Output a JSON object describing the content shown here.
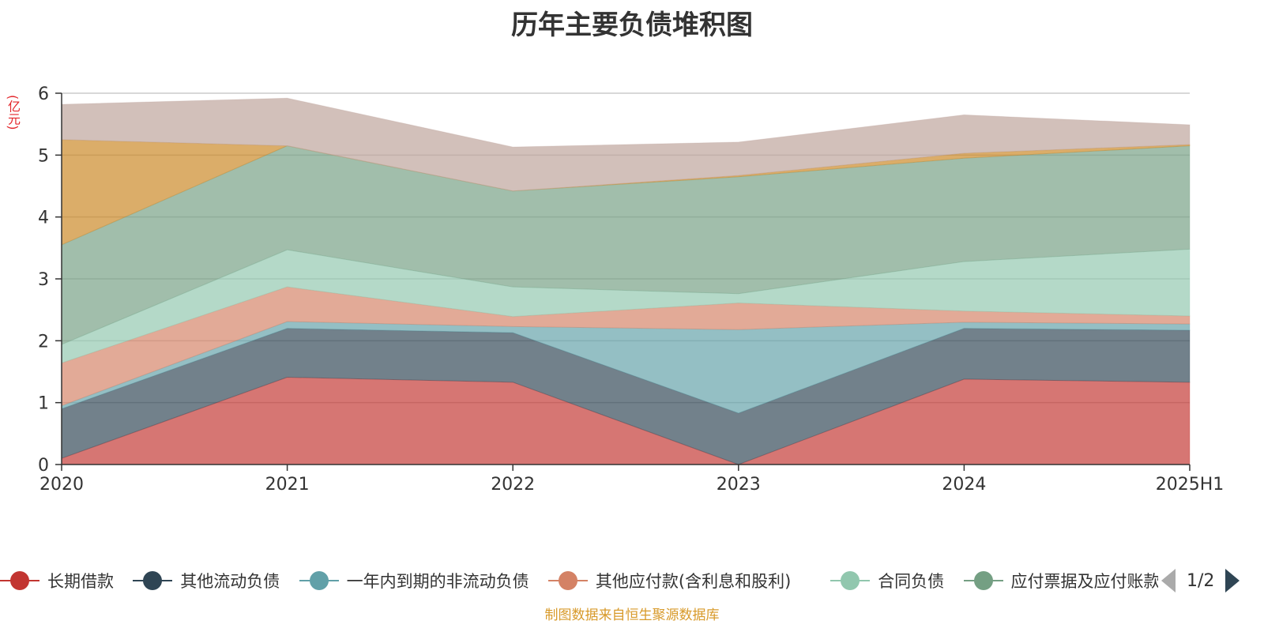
{
  "title": "历年主要负债堆积图",
  "unit": "(亿元)",
  "source_note": "制图数据来自恒生聚源数据库",
  "legend_page": "1/2",
  "chart_data": {
    "type": "area",
    "stacked": true,
    "x": [
      "2020",
      "2021",
      "2022",
      "2023",
      "2024",
      "2025H1"
    ],
    "ylim": [
      0,
      6
    ],
    "yticks": [
      0,
      1,
      2,
      3,
      4,
      5,
      6
    ],
    "grid": true,
    "legend_position": "bottom",
    "series": [
      {
        "name": "长期借款",
        "color": "#c23531",
        "values": [
          0.1,
          1.41,
          1.33,
          0.0,
          1.38,
          1.33
        ]
      },
      {
        "name": "其他流动负债",
        "color": "#2f4554",
        "values": [
          0.8,
          0.79,
          0.8,
          0.83,
          0.82,
          0.84
        ]
      },
      {
        "name": "一年内到期的非流动负债",
        "color": "#61a0a8",
        "values": [
          0.05,
          0.11,
          0.1,
          1.35,
          0.1,
          0.1
        ]
      },
      {
        "name": "其他应付款(含利息和股利)",
        "color": "#d48265",
        "values": [
          0.69,
          0.56,
          0.16,
          0.43,
          0.18,
          0.13
        ]
      },
      {
        "name": "合同负债",
        "color": "#91c7ae",
        "values": [
          0.3,
          0.6,
          0.48,
          0.15,
          0.8,
          1.08
        ]
      },
      {
        "name": "应付票据及应付账款",
        "color": "#749f83",
        "values": [
          1.61,
          1.68,
          1.55,
          1.89,
          1.67,
          1.67
        ]
      },
      {
        "name": "",
        "color": "#ca8622",
        "values": [
          1.7,
          0.0,
          0.0,
          0.02,
          0.08,
          0.02
        ]
      },
      {
        "name": "",
        "color": "#bda29a",
        "values": [
          0.57,
          0.77,
          0.71,
          0.54,
          0.62,
          0.32
        ]
      }
    ]
  }
}
